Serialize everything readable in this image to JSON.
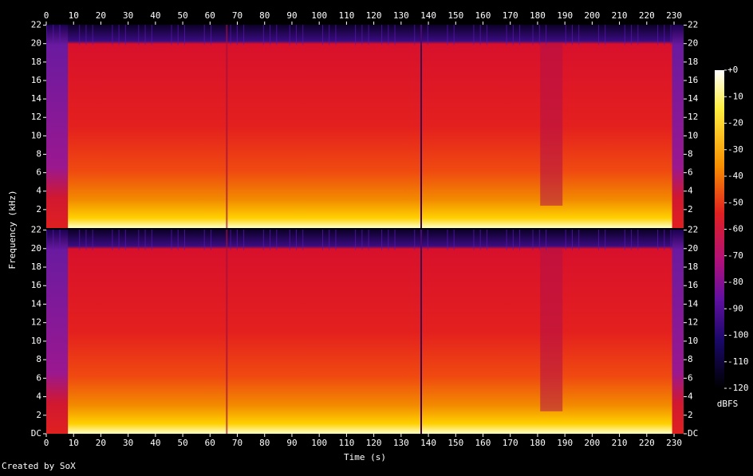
{
  "chart_data": [
    {
      "type": "spectrogram",
      "ylabel": "Frequency (kHz)",
      "xlim": [
        0,
        233.5
      ],
      "xticks": [
        0,
        10,
        20,
        30,
        40,
        50,
        60,
        70,
        80,
        90,
        100,
        110,
        120,
        130,
        140,
        150,
        160,
        170,
        180,
        190,
        200,
        210,
        220,
        230
      ],
      "ylim": [
        0,
        22.05
      ],
      "yticks": [
        2,
        4,
        6,
        8,
        10,
        12,
        14,
        16,
        18,
        20,
        22
      ]
    },
    {
      "type": "spectrogram",
      "xlabel": "Time (s)",
      "xlim": [
        0,
        233.5
      ],
      "xticks": [
        0,
        10,
        20,
        30,
        40,
        50,
        60,
        70,
        80,
        90,
        100,
        110,
        120,
        130,
        140,
        150,
        160,
        170,
        180,
        190,
        200,
        210,
        220,
        230
      ],
      "ylim": [
        0,
        22.05
      ],
      "yticks": [
        {
          "value": 0,
          "label": "DC"
        },
        2,
        4,
        6,
        8,
        10,
        12,
        14,
        16,
        18,
        20,
        22
      ]
    }
  ],
  "colorbar": {
    "label": "dBFS",
    "lim": [
      -120,
      0
    ],
    "ticks": [
      {
        "value": 0,
        "label": "+0"
      },
      -10,
      -20,
      -30,
      -40,
      -50,
      -60,
      -70,
      -80,
      -90,
      -100,
      -110,
      -120
    ]
  },
  "footer": "Created by SoX"
}
